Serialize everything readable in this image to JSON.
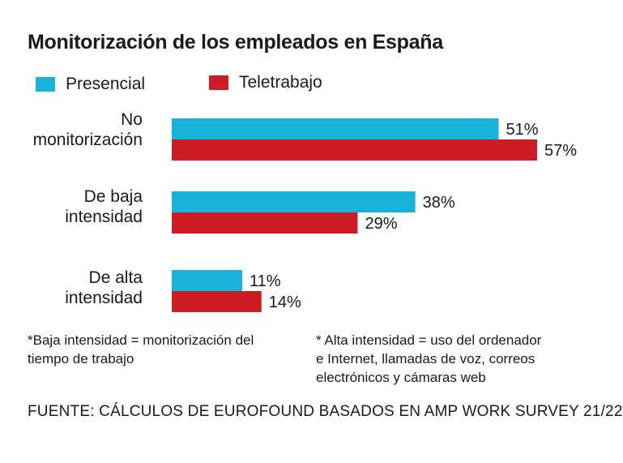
{
  "chart_data": {
    "type": "bar",
    "orientation": "horizontal",
    "title": "Monitorización de los empleados en España",
    "categories": [
      "No monitorización",
      "De baja intensidad",
      "De alta intensidad"
    ],
    "category_lines": [
      [
        "No",
        "monitorización"
      ],
      [
        "De baja",
        "intensidad"
      ],
      [
        "De alta",
        "intensidad"
      ]
    ],
    "series": [
      {
        "name": "Presencial",
        "values": [
          51,
          38,
          11
        ],
        "labels": [
          "51%",
          "38%",
          "11%"
        ],
        "color": "#1ab2da"
      },
      {
        "name": "Teletrabajo",
        "values": [
          57,
          29,
          14
        ],
        "labels": [
          "57%",
          "29%",
          "14%"
        ],
        "color": "#cc1d24"
      }
    ],
    "unit": "%",
    "xlim": [
      0,
      57
    ],
    "legend": "top-left",
    "grid": false
  },
  "notes": {
    "left": "*Baja intensidad = monitorización del\ntiempo de trabajo",
    "right": "* Alta intensidad = uso del ordenador\ne Internet, llamadas de voz, correos\nelectrónicos y cámaras web"
  },
  "source": "FUENTE: CÁLCULOS DE EUROFOUND BASADOS EN AMP WORK SURVEY 21/22"
}
